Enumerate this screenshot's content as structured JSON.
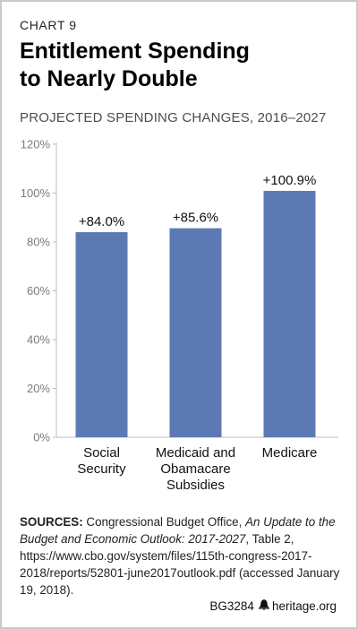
{
  "chart_label": "CHART 9",
  "title_line1": "Entitlement Spending",
  "title_line2": "to Nearly Double",
  "subtitle": "PROJECTED SPENDING CHANGES, 2016–2027",
  "chart_data": {
    "type": "bar",
    "title": "Entitlement Spending to Nearly Double",
    "subtitle": "PROJECTED SPENDING CHANGES, 2016–2027",
    "categories": [
      [
        "Social",
        "Security"
      ],
      [
        "Medicaid and",
        "Obamacare",
        "Subsidies"
      ],
      [
        "Medicare"
      ]
    ],
    "values": [
      84.0,
      85.6,
      100.9
    ],
    "data_labels": [
      "+84.0%",
      "+85.6%",
      "+100.9%"
    ],
    "ylim": [
      0,
      120
    ],
    "yticks": [
      "0%",
      "20%",
      "40%",
      "60%",
      "80%",
      "100%",
      "120%"
    ],
    "xlabel": "",
    "ylabel": "",
    "bar_color": "#5d79b3",
    "grid": false,
    "legend": "none"
  },
  "source": {
    "head": "SOURCES:",
    "text1": " Congressional Budget Office, ",
    "italic": "An Update to the Budget and Economic Outlook: 2017-2027",
    "text2": ", Table 2, https://www.cbo.gov/system/files/115th-congress-2017-2018/reports/52801-june2017outlook.pdf (accessed January 19, 2018)."
  },
  "footer": {
    "code": "BG3284",
    "site": "heritage.org"
  }
}
